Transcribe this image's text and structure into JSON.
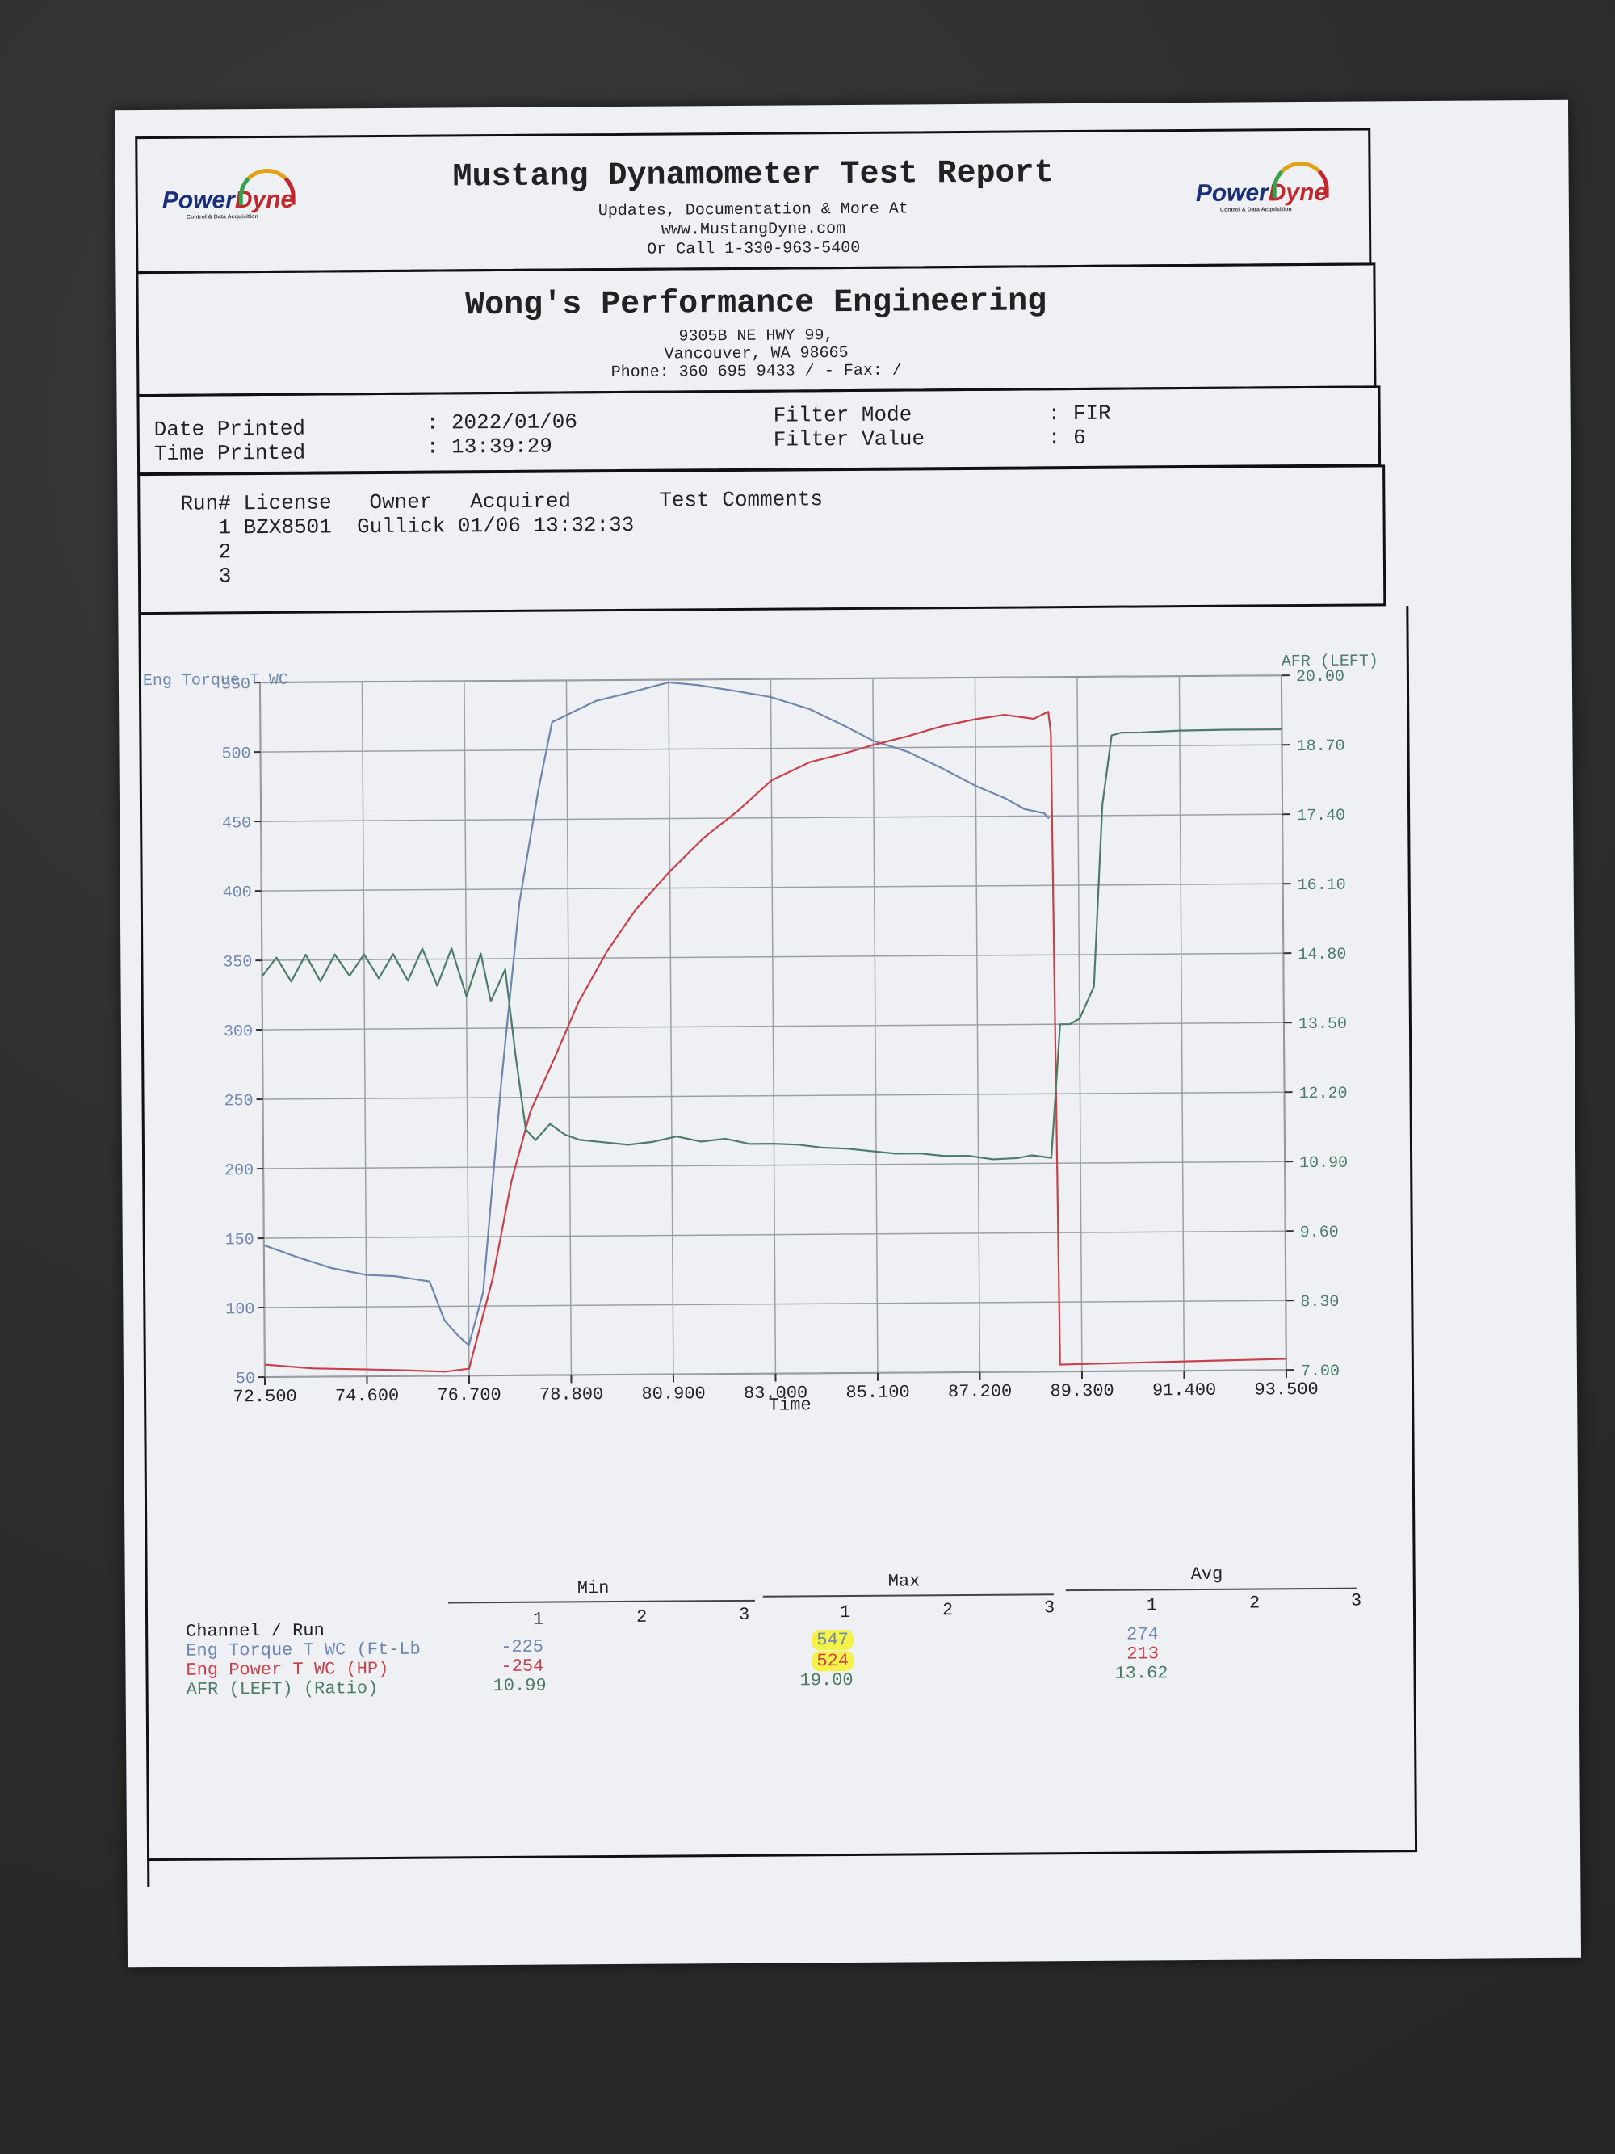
{
  "report": {
    "title": "Mustang Dynamometer Test Report",
    "sub1": "Updates, Documentation & More At",
    "sub2": "www.MustangDyne.com",
    "sub3": "Or Call 1-330-963-5400",
    "logo_left": {
      "power": "Power",
      "dyne": "Dyne",
      "tag": "Control & Data Acquisition"
    },
    "logo_right": {
      "power": "Power",
      "dyne": "Dyne",
      "tag": "Control & Data Acquisition"
    }
  },
  "shop": {
    "name": "Wong's Performance Engineering",
    "addr1": "9305B NE HWY 99,",
    "addr2": "Vancouver, WA  98665",
    "phone": "Phone: 360 695 9433 /  - Fax:  /"
  },
  "info": {
    "date_label": "Date Printed",
    "date_value": ": 2022/01/06",
    "time_label": "Time Printed",
    "time_value": ": 13:39:29",
    "filter_mode_label": "Filter Mode",
    "filter_mode_value": ": FIR",
    "filter_value_label": "Filter Value",
    "filter_value_value": ": 6"
  },
  "runs": {
    "header": "Run# License   Owner   Acquired       Test Comments",
    "row1": "   1 BZX8501  Gullick 01/06 13:32:33",
    "row2": "   2",
    "row3": "   3"
  },
  "chart_data": {
    "type": "line",
    "xlabel": "Time",
    "ylabel_left": "Eng Torque T WC",
    "ylabel_right": "AFR (LEFT)",
    "xlim": [
      72.5,
      93.5
    ],
    "ylim_left": [
      50,
      550
    ],
    "ylim_right": [
      7.0,
      20.0
    ],
    "x_ticks": [
      "72.500",
      "74.600",
      "76.700",
      "78.800",
      "80.900",
      "83.000",
      "85.100",
      "87.200",
      "89.300",
      "91.400",
      "93.500"
    ],
    "y_left_ticks": [
      "50",
      "100",
      "150",
      "200",
      "250",
      "300",
      "350",
      "400",
      "450",
      "500",
      "550"
    ],
    "y_right_ticks": [
      "7.00",
      "8.30",
      "9.60",
      "10.90",
      "12.20",
      "13.50",
      "14.80",
      "16.10",
      "17.40",
      "18.70",
      "20.00"
    ],
    "grid": true,
    "colors": {
      "torque": "#6f86ad",
      "power": "#c8404a",
      "afr": "#4c7c68",
      "axis_text_left": "#6f86ad",
      "axis_text_right": "#4c7c68"
    },
    "series": [
      {
        "name": "Eng Torque T WC (Ft-Lb",
        "axis": "left",
        "x": [
          72.5,
          73.2,
          73.9,
          74.6,
          75.2,
          75.9,
          76.2,
          76.5,
          76.7,
          77.0,
          77.4,
          77.8,
          78.2,
          78.5,
          78.8,
          79.4,
          80.0,
          80.9,
          81.5,
          82.2,
          83.0,
          83.8,
          84.5,
          85.1,
          85.8,
          86.5,
          87.2,
          87.8,
          88.2,
          88.6,
          88.7
        ],
        "values": [
          145,
          136,
          128,
          123,
          122,
          118,
          90,
          78,
          72,
          110,
          260,
          390,
          470,
          520,
          525,
          535,
          540,
          548,
          546,
          542,
          537,
          528,
          516,
          505,
          497,
          485,
          472,
          463,
          455,
          452,
          448
        ]
      },
      {
        "name": "Eng Power T WC (HP)",
        "axis": "left",
        "x": [
          72.5,
          73.5,
          74.6,
          75.5,
          76.2,
          76.7,
          77.2,
          77.6,
          78.0,
          78.5,
          79.0,
          79.6,
          80.2,
          80.9,
          81.6,
          82.3,
          83.0,
          83.8,
          84.5,
          85.1,
          85.8,
          86.5,
          87.2,
          87.8,
          88.4,
          88.7,
          88.75,
          88.85,
          93.5
        ],
        "values": [
          59,
          56,
          55,
          54,
          53,
          55,
          120,
          190,
          240,
          278,
          318,
          355,
          385,
          412,
          436,
          455,
          477,
          490,
          496,
          502,
          508,
          515,
          520,
          523,
          520,
          525,
          510,
          55,
          58
        ]
      },
      {
        "name": "AFR (LEFT) (Ratio)",
        "axis": "right",
        "x": [
          72.5,
          72.8,
          73.1,
          73.4,
          73.7,
          74.0,
          74.3,
          74.6,
          74.9,
          75.2,
          75.5,
          75.8,
          76.1,
          76.4,
          76.7,
          77.0,
          77.2,
          77.5,
          77.7,
          77.9,
          78.1,
          78.4,
          78.7,
          79.0,
          79.5,
          80.0,
          80.5,
          81.0,
          81.5,
          82.0,
          82.5,
          83.0,
          83.5,
          84.0,
          84.5,
          85.0,
          85.5,
          86.0,
          86.5,
          87.0,
          87.5,
          88.0,
          88.3,
          88.7,
          88.9,
          89.1,
          89.3,
          89.6,
          89.8,
          90.0,
          90.2,
          90.6,
          91.4,
          92.4,
          93.5
        ],
        "values": [
          14.5,
          14.85,
          14.4,
          14.9,
          14.4,
          14.9,
          14.5,
          14.9,
          14.45,
          14.9,
          14.4,
          15.0,
          14.3,
          15.0,
          14.1,
          14.9,
          14.0,
          14.6,
          13.0,
          11.6,
          11.4,
          11.7,
          11.5,
          11.4,
          11.35,
          11.3,
          11.35,
          11.45,
          11.35,
          11.4,
          11.3,
          11.3,
          11.28,
          11.22,
          11.2,
          11.15,
          11.1,
          11.1,
          11.05,
          11.05,
          10.98,
          11.0,
          11.05,
          11.0,
          13.5,
          13.5,
          13.6,
          14.2,
          17.6,
          18.9,
          18.95,
          18.95,
          18.98,
          18.99,
          18.99
        ]
      }
    ]
  },
  "stats": {
    "group_min": "Min",
    "group_max": "Max",
    "group_avg": "Avg",
    "runs": [
      "1",
      "2",
      "3"
    ],
    "channel_header": "Channel / Run",
    "rows": [
      {
        "label": "Eng Torque T WC (Ft-Lb",
        "min": "-225",
        "max": "547",
        "avg": "274"
      },
      {
        "label": "Eng Power T WC (HP)",
        "min": "-254",
        "max": "524",
        "avg": "213"
      },
      {
        "label": "AFR (LEFT) (Ratio)",
        "min": "10.99",
        "max": "19.00",
        "avg": "13.62"
      }
    ]
  }
}
